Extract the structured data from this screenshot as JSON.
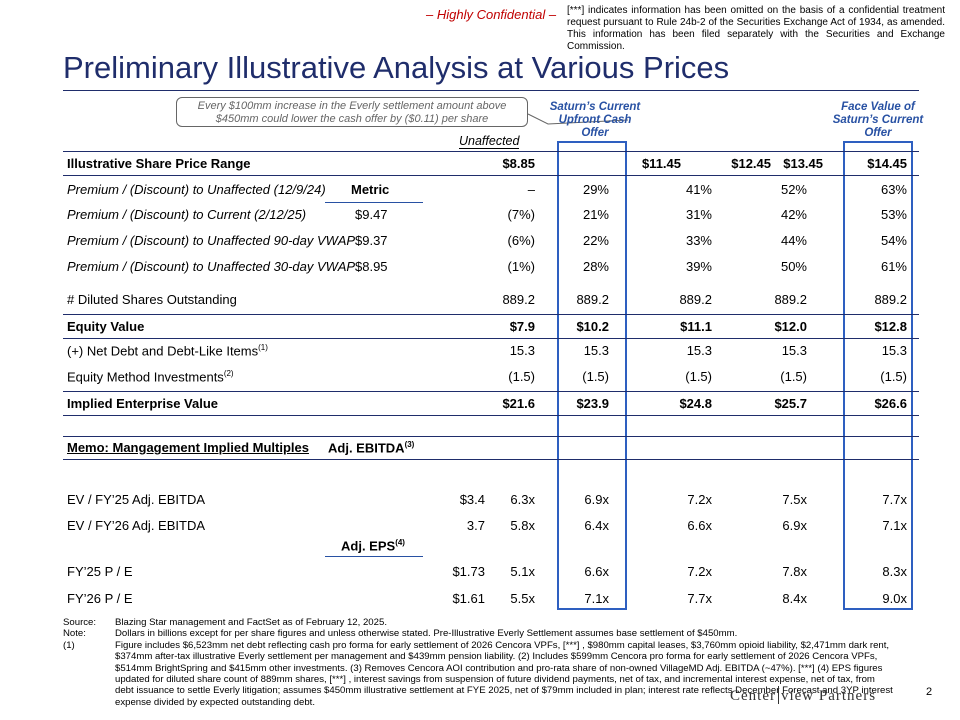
{
  "header": {
    "confidential": "– Highly Confidential –",
    "omission_note": "[***] indicates information has been omitted on the basis of a confidential treatment request pursuant to Rule 24b-2 of the Securities Exchange Act of 1934, as amended. This information has been filed separately with the Securities and Exchange Commission.",
    "title": "Preliminary Illustrative Analysis at Various Prices"
  },
  "callout": "Every $100mm increase in the Everly settlement amount above $450mm could lower the cash offer by ($0.11) per share",
  "column_headers": {
    "unaffected": "Unaffected",
    "upfront": "Saturn’s Current Upfront Cash Offer",
    "face_value": "Face Value of Saturn’s Current Offer"
  },
  "rows": {
    "price": {
      "label": "Illustrative Share Price Range",
      "values": [
        "$8.85",
        "$11.45",
        "$12.45",
        "$13.45",
        "$14.45"
      ]
    },
    "metric_header": "Metric",
    "prem_unaffected": {
      "label": "Premium / (Discount) to Unaffected (12/9/24)",
      "values": [
        "–",
        "29%",
        "41%",
        "52%",
        "63%"
      ]
    },
    "prem_current": {
      "label": "Premium / (Discount) to Current (2/12/25)",
      "metric": "$9.47",
      "values": [
        "(7%)",
        "21%",
        "31%",
        "42%",
        "53%"
      ]
    },
    "prem_90": {
      "label": "Premium / (Discount) to Unaffected 90-day VWAP",
      "metric": "$9.37",
      "values": [
        "(6%)",
        "22%",
        "33%",
        "44%",
        "54%"
      ]
    },
    "prem_30": {
      "label": "Premium / (Discount) to Unaffected 30-day VWAP",
      "metric": "$8.95",
      "values": [
        "(1%)",
        "28%",
        "39%",
        "50%",
        "61%"
      ]
    },
    "shares": {
      "label": "# Diluted Shares Outstanding",
      "values": [
        "889.2",
        "889.2",
        "889.2",
        "889.2",
        "889.2"
      ]
    },
    "equity": {
      "label": "Equity Value",
      "values": [
        "$7.9",
        "$10.2",
        "$11.1",
        "$12.0",
        "$12.8"
      ]
    },
    "net_debt": {
      "label": "(+) Net Debt and Debt-Like Items",
      "sup": "(1)",
      "values": [
        "15.3",
        "15.3",
        "15.3",
        "15.3",
        "15.3"
      ]
    },
    "equity_method": {
      "label": "Equity Method Investments",
      "sup": "(2)",
      "values": [
        "(1.5)",
        "(1.5)",
        "(1.5)",
        "(1.5)",
        "(1.5)"
      ]
    },
    "ev": {
      "label": "Implied Enterprise Value",
      "values": [
        "$21.6",
        "$23.9",
        "$24.8",
        "$25.7",
        "$26.6"
      ]
    },
    "memo": {
      "label": "Memo: Mangagement Implied Multiples",
      "metric": "Adj. EBITDA",
      "sup": "(3)"
    },
    "ev_25": {
      "label": "EV / FY’25 Adj. EBITDA",
      "values": [
        "$3.4",
        "6.3x",
        "6.9x",
        "7.2x",
        "7.5x",
        "7.7x"
      ]
    },
    "ev_26": {
      "label": "EV / FY’26 Adj. EBITDA",
      "values": [
        "3.7",
        "5.8x",
        "6.4x",
        "6.6x",
        "6.9x",
        "7.1x"
      ]
    },
    "eps_header": {
      "metric": "Adj. EPS",
      "sup": "(4)"
    },
    "pe_25": {
      "label": "FY’25 P / E",
      "values": [
        "$1.73",
        "5.1x",
        "6.6x",
        "7.2x",
        "7.8x",
        "8.3x"
      ]
    },
    "pe_26": {
      "label": "FY’26 P / E",
      "values": [
        "$1.61",
        "5.5x",
        "7.1x",
        "7.7x",
        "8.4x",
        "9.0x"
      ]
    }
  },
  "footnotes": {
    "source_tag": "Source:",
    "source": "Blazing Star management and FactSet as of February 12, 2025.",
    "note_tag": "Note:",
    "note": "Dollars in billions except for per share figures and unless otherwise stated. Pre-Illustrative Everly Settlement assumes base settlement of $450mm.",
    "fn1_tag": "(1)",
    "fn1": "Figure includes $6,523mm net debt reflecting cash pro forma for early settlement of 2026 Cencora VPFs, [***]                                  , $980mm capital leases, $3,760mm opioid liability, $2,471mm dark rent, $374mm after-tax illustrative Everly settlement per management and $439mm pension liability. (2) Includes $599mm Cencora pro forma for early settlement of 2026 Cencora VPFs, $514mm BrightSpring and $415mm other investments. (3) Removes Cencora AOI contribution and pro-rata share of non-owned VillageMD Adj. EBITDA (~47%). [***]                                   (4) EPS figures updated for diluted share count of 889mm shares, [***]                                   , interest savings from suspension of future dividend payments, net of tax, and incremental interest expense, net of tax, from debt issuance to settle Everly litigation; assumes $450mm illustrative settlement at FYE 2025, net of $79mm included in plan; interest rate reflects December Forecast and 3YP interest expense divided by expected outstanding debt."
  },
  "logo": {
    "left": "Center",
    "right": "view Partners"
  },
  "page_number": "2"
}
